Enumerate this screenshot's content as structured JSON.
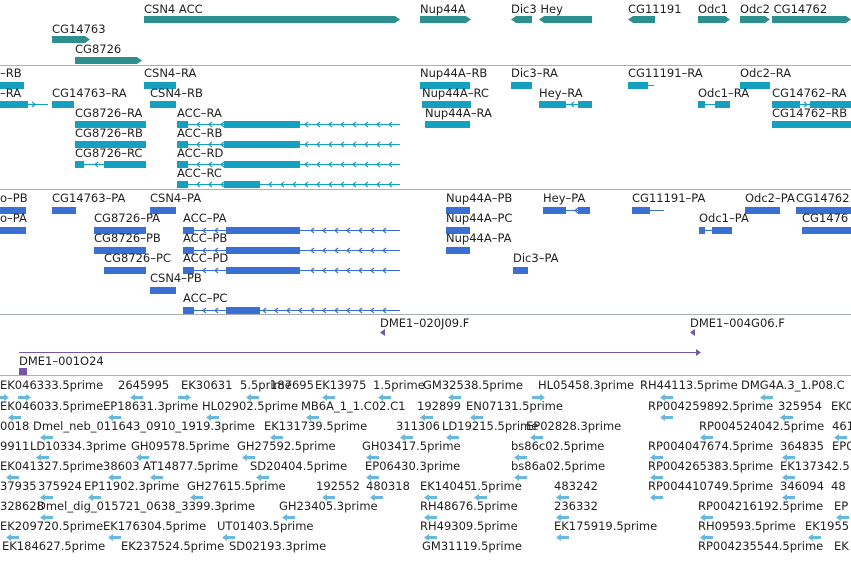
{
  "colors": {
    "gene": "#2e8f8f",
    "transcript_rna": "#15a0c0",
    "transcript_protein": "#3a6fd4",
    "cdna": "#7656a8",
    "est": "#68b8dd",
    "separator": "#aab0b7"
  },
  "tracks": {
    "genes": [
      {
        "label": "CSN4 ACC"
      },
      {
        "label": "CG14763"
      },
      {
        "label": "CG8726"
      },
      {
        "label": "Nup44A"
      },
      {
        "label": "Dic3 Hey"
      },
      {
        "label": "CG11191"
      },
      {
        "label": "Odc1"
      },
      {
        "label": "Odc2 CG14762"
      }
    ],
    "rna": [
      {
        "label": "–RB"
      },
      {
        "label": "–RA"
      },
      {
        "label": "CSN4–RA"
      },
      {
        "label": "CSN4–RB"
      },
      {
        "label": "CG14763–RA"
      },
      {
        "label": "CG8726–RA"
      },
      {
        "label": "CG8726–RB"
      },
      {
        "label": "CG8726–RC"
      },
      {
        "label": "ACC–RA"
      },
      {
        "label": "ACC–RB"
      },
      {
        "label": "ACC–RD"
      },
      {
        "label": "ACC–RC"
      },
      {
        "label": "Nup44A–RB"
      },
      {
        "label": "Nup44A–RC"
      },
      {
        "label": "Nup44A–RA"
      },
      {
        "label": "Dic3–RA"
      },
      {
        "label": "Hey–RA"
      },
      {
        "label": "CG11191–RA"
      },
      {
        "label": "Odc1–RA"
      },
      {
        "label": "Odc2–RA"
      },
      {
        "label": "CG14762–RA"
      },
      {
        "label": "CG14762–RB"
      }
    ],
    "protein": [
      {
        "label": "o–PB"
      },
      {
        "label": "o–PA"
      },
      {
        "label": "CG14763–PA"
      },
      {
        "label": "CSN4–PA"
      },
      {
        "label": "CG8726–PA"
      },
      {
        "label": "CG8726–PB"
      },
      {
        "label": "CG8726–PC"
      },
      {
        "label": "CSN4–PB"
      },
      {
        "label": "ACC–PA"
      },
      {
        "label": "ACC–PB"
      },
      {
        "label": "ACC–PD"
      },
      {
        "label": "ACC–PC"
      },
      {
        "label": "Nup44A–PB"
      },
      {
        "label": "Nup44A–PC"
      },
      {
        "label": "Nup44A–PA"
      },
      {
        "label": "Dic3–PA"
      },
      {
        "label": "Hey–PA"
      },
      {
        "label": "CG11191–PA"
      },
      {
        "label": "Odc1–PA"
      },
      {
        "label": "Odc2–PA"
      },
      {
        "label": "CG14762"
      },
      {
        "label": "CG1476"
      }
    ],
    "cdna": [
      {
        "label": "DME1–020J09.F"
      },
      {
        "label": "DME1–004G06.F"
      },
      {
        "label": "DME1–001O24"
      }
    ],
    "est": [
      {
        "label": "EK046333.5prime"
      },
      {
        "label": "2645995"
      },
      {
        "label": "EK30631"
      },
      {
        "label": "5.5prime"
      },
      {
        "label": "187695"
      },
      {
        "label": "EK13975"
      },
      {
        "label": "1.5prime"
      },
      {
        "label": "GM32538.5prime"
      },
      {
        "label": "HL05458.3prime"
      },
      {
        "label": "RH44113.5prime"
      },
      {
        "label": "DMG4A.3_1.P08.C"
      },
      {
        "label": "EK046033.5prime"
      },
      {
        "label": "EP18631.3prime"
      },
      {
        "label": "HL02902.5prime"
      },
      {
        "label": "MB6A_1_1.C02.C1"
      },
      {
        "label": "192899"
      },
      {
        "label": "EN07131.5prime"
      },
      {
        "label": "RP004259892.5prime"
      },
      {
        "label": "325954"
      },
      {
        "label": "EK0"
      },
      {
        "label": "0018"
      },
      {
        "label": "Dmel_neb_011643_0910_1919.3prime"
      },
      {
        "label": "EK131739.5prime"
      },
      {
        "label": "311306"
      },
      {
        "label": "LD19215.5prime"
      },
      {
        "label": "EP02828.3prime"
      },
      {
        "label": "RP004524042.5prime"
      },
      {
        "label": "461"
      },
      {
        "label": "9911"
      },
      {
        "label": "LD10334.3prime"
      },
      {
        "label": "GH09578.5prime"
      },
      {
        "label": "GH27592.5prime"
      },
      {
        "label": "GH03417.5prime"
      },
      {
        "label": "bs86c02.5prime"
      },
      {
        "label": "RP004047674.5prime"
      },
      {
        "label": "364835"
      },
      {
        "label": "EP0"
      },
      {
        "label": "EK041327.5prime"
      },
      {
        "label": "38603"
      },
      {
        "label": "AT14877.5prime"
      },
      {
        "label": "SD20404.5prime"
      },
      {
        "label": "EP06430.3prime"
      },
      {
        "label": "bs86a02.5prime"
      },
      {
        "label": "RP004265383.5prime"
      },
      {
        "label": "EK137342.5"
      },
      {
        "label": "37935"
      },
      {
        "label": "375924"
      },
      {
        "label": "EP11902.3prime"
      },
      {
        "label": "GH27615.5prime"
      },
      {
        "label": "192552"
      },
      {
        "label": "480318"
      },
      {
        "label": "EK14045"
      },
      {
        "label": "1.5prime"
      },
      {
        "label": "483242"
      },
      {
        "label": "RP004410749.5prime"
      },
      {
        "label": "346094"
      },
      {
        "label": "48"
      },
      {
        "label": "328628"
      },
      {
        "label": "Dmel_dig_015721_0638_3399.3prime"
      },
      {
        "label": "GH23405.3prime"
      },
      {
        "label": "RH48676.5prime"
      },
      {
        "label": "236332"
      },
      {
        "label": "RP004216192.5prime"
      },
      {
        "label": "EP"
      },
      {
        "label": "EK209720.5prime"
      },
      {
        "label": "EK176304.5prime"
      },
      {
        "label": "UT01403.5prime"
      },
      {
        "label": "RH49309.5prime"
      },
      {
        "label": "EK175919.5prime"
      },
      {
        "label": "RH09593.5prime"
      },
      {
        "label": "EK1955"
      },
      {
        "label": "EK184627.5prime"
      },
      {
        "label": "EK237524.5prime"
      },
      {
        "label": "SD02193.3prime"
      },
      {
        "label": "GM31119.5prime"
      },
      {
        "label": "RP004235544.5prime"
      },
      {
        "label": "EK"
      }
    ]
  }
}
